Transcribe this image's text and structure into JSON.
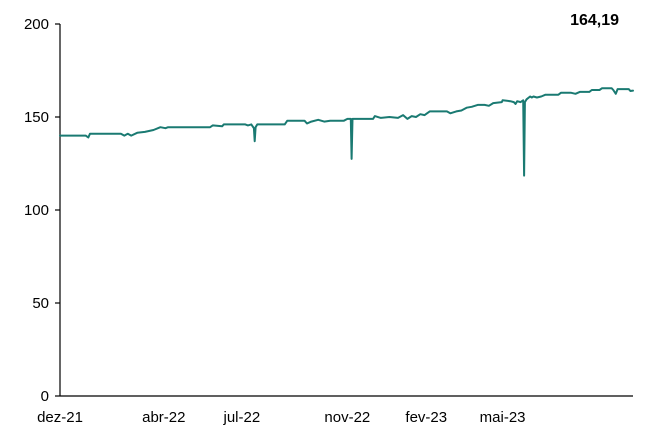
{
  "chart_data": {
    "type": "line",
    "title": "",
    "xlabel": "",
    "ylabel": "",
    "ylim": [
      0,
      200
    ],
    "yticks": [
      0,
      50,
      100,
      150,
      200
    ],
    "ytick_labels": [
      "0",
      "50",
      "100",
      "150",
      "200"
    ],
    "xlim": [
      "2021-12-01",
      "2023-09-30"
    ],
    "xticks": [
      {
        "date": "2021-12-01",
        "label": "dez-21"
      },
      {
        "date": "2022-04-01",
        "label": "abr-22"
      },
      {
        "date": "2022-07-01",
        "label": "jul-22"
      },
      {
        "date": "2022-11-01",
        "label": "nov-22"
      },
      {
        "date": "2023-02-01",
        "label": "fev-23"
      },
      {
        "date": "2023-05-01",
        "label": "mai-23"
      }
    ],
    "grid": false,
    "legend": "none",
    "last_value_label": "164,19",
    "series": [
      {
        "color": "#1a7a72",
        "points": [
          [
            "2021-12-01",
            140.0
          ],
          [
            "2021-12-31",
            140.0
          ],
          [
            "2022-01-03",
            139.0
          ],
          [
            "2022-01-05",
            141.0
          ],
          [
            "2022-02-10",
            141.0
          ],
          [
            "2022-02-14",
            140.0
          ],
          [
            "2022-02-18",
            141.0
          ],
          [
            "2022-02-22",
            140.0
          ],
          [
            "2022-03-01",
            141.5
          ],
          [
            "2022-03-10",
            142.0
          ],
          [
            "2022-03-20",
            143.0
          ],
          [
            "2022-03-28",
            144.5
          ],
          [
            "2022-04-03",
            144.0
          ],
          [
            "2022-04-06",
            144.5
          ],
          [
            "2022-05-25",
            144.5
          ],
          [
            "2022-05-28",
            145.5
          ],
          [
            "2022-06-08",
            145.0
          ],
          [
            "2022-06-10",
            146.0
          ],
          [
            "2022-07-05",
            146.0
          ],
          [
            "2022-07-08",
            145.5
          ],
          [
            "2022-07-12",
            146.0
          ],
          [
            "2022-07-15",
            144.0
          ],
          [
            "2022-07-16",
            137.0
          ],
          [
            "2022-07-17",
            144.5
          ],
          [
            "2022-07-19",
            146.0
          ],
          [
            "2022-08-20",
            146.0
          ],
          [
            "2022-08-23",
            148.0
          ],
          [
            "2022-09-12",
            148.0
          ],
          [
            "2022-09-15",
            146.5
          ],
          [
            "2022-09-20",
            147.5
          ],
          [
            "2022-09-28",
            148.5
          ],
          [
            "2022-10-05",
            147.5
          ],
          [
            "2022-10-12",
            148.0
          ],
          [
            "2022-10-28",
            148.0
          ],
          [
            "2022-11-01",
            149.0
          ],
          [
            "2022-11-05",
            149.0
          ],
          [
            "2022-11-06",
            127.5
          ],
          [
            "2022-11-07",
            149.0
          ],
          [
            "2022-12-01",
            149.0
          ],
          [
            "2022-12-03",
            150.5
          ],
          [
            "2022-12-10",
            149.5
          ],
          [
            "2022-12-20",
            150.0
          ],
          [
            "2022-12-30",
            149.5
          ],
          [
            "2023-01-05",
            151.0
          ],
          [
            "2023-01-10",
            149.0
          ],
          [
            "2023-01-15",
            150.5
          ],
          [
            "2023-01-20",
            150.0
          ],
          [
            "2023-01-25",
            151.5
          ],
          [
            "2023-01-30",
            151.0
          ],
          [
            "2023-02-05",
            153.0
          ],
          [
            "2023-02-25",
            153.0
          ],
          [
            "2023-03-01",
            152.0
          ],
          [
            "2023-03-08",
            153.0
          ],
          [
            "2023-03-14",
            153.5
          ],
          [
            "2023-03-20",
            155.0
          ],
          [
            "2023-03-26",
            155.5
          ],
          [
            "2023-04-02",
            156.5
          ],
          [
            "2023-04-10",
            156.5
          ],
          [
            "2023-04-15",
            156.0
          ],
          [
            "2023-04-20",
            157.5
          ],
          [
            "2023-04-30",
            158.0
          ],
          [
            "2023-05-01",
            159.0
          ],
          [
            "2023-05-10",
            158.5
          ],
          [
            "2023-05-14",
            158.0
          ],
          [
            "2023-05-16",
            157.0
          ],
          [
            "2023-05-18",
            158.5
          ],
          [
            "2023-05-22",
            158.0
          ],
          [
            "2023-05-25",
            159.0
          ],
          [
            "2023-05-26",
            118.5
          ],
          [
            "2023-05-27",
            158.0
          ],
          [
            "2023-05-29",
            159.5
          ],
          [
            "2023-06-02",
            161.0
          ],
          [
            "2023-06-04",
            160.5
          ],
          [
            "2023-06-06",
            161.0
          ],
          [
            "2023-06-10",
            160.5
          ],
          [
            "2023-06-15",
            161.0
          ],
          [
            "2023-06-20",
            162.0
          ],
          [
            "2023-07-05",
            162.0
          ],
          [
            "2023-07-08",
            163.0
          ],
          [
            "2023-07-20",
            163.0
          ],
          [
            "2023-07-25",
            162.5
          ],
          [
            "2023-07-30",
            163.5
          ],
          [
            "2023-08-10",
            163.5
          ],
          [
            "2023-08-13",
            164.5
          ],
          [
            "2023-08-22",
            164.5
          ],
          [
            "2023-08-25",
            165.5
          ],
          [
            "2023-09-05",
            165.5
          ],
          [
            "2023-09-07",
            164.5
          ],
          [
            "2023-09-10",
            162.5
          ],
          [
            "2023-09-12",
            165.0
          ],
          [
            "2023-09-20",
            165.0
          ],
          [
            "2023-09-25",
            165.0
          ],
          [
            "2023-09-27",
            164.0
          ],
          [
            "2023-09-30",
            164.19
          ]
        ]
      }
    ]
  }
}
